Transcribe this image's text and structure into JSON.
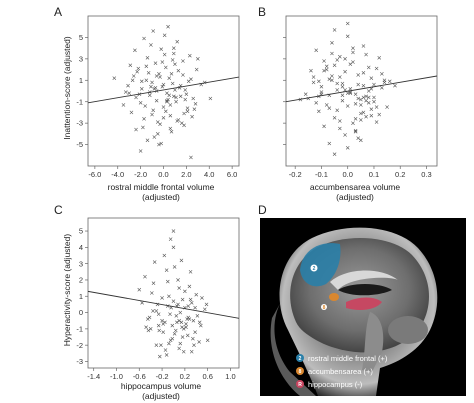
{
  "panels": {
    "a": {
      "letter": "A"
    },
    "b": {
      "letter": "B"
    },
    "c": {
      "letter": "C"
    },
    "d": {
      "letter": "D",
      "legend": [
        {
          "number": "2",
          "label": "rostral middle frontal (+)",
          "color": "#2a7fa8"
        },
        {
          "number": "8",
          "label": "accumbensarea (+)",
          "color": "#d9872f"
        },
        {
          "number": "R",
          "label": "hippocampus (-)",
          "color": "#c94560"
        }
      ],
      "region_labels": [
        "2",
        "8"
      ]
    }
  },
  "chart_data": [
    {
      "id": "a",
      "type": "scatter",
      "title": "",
      "ylabel": "Inattention-score (adjusted)",
      "xlabel_lines": [
        "rostral middle frontal volume",
        "(adjusted)"
      ],
      "xlim": [
        -6.6,
        6.6
      ],
      "ylim": [
        -7,
        7
      ],
      "xticks": [
        -6.0,
        -4.0,
        -2.0,
        0.0,
        2.0,
        4.0,
        6.0
      ],
      "xtick_labels": [
        "-6.0",
        "-4.0",
        "-2.0",
        "0.0",
        "2.0",
        "4.0",
        "6.0"
      ],
      "yticks": [
        -5,
        -3,
        -1,
        1,
        3,
        5
      ],
      "ytick_labels": [
        "-5",
        "-3",
        "-1",
        "1",
        "3",
        "5"
      ],
      "regression": {
        "x": [
          -6.6,
          6.6
        ],
        "y": [
          -1.1,
          1.3
        ]
      },
      "points_x": [
        -3.5,
        -3.1,
        -2.8,
        -2.6,
        -2.4,
        -2.2,
        -2.0,
        -1.9,
        -1.7,
        -1.5,
        -1.4,
        -1.2,
        -1.0,
        -0.9,
        -0.7,
        -0.6,
        -0.4,
        -0.3,
        -0.1,
        0.0,
        0.2,
        0.3,
        0.5,
        0.6,
        0.8,
        0.9,
        1.1,
        1.3,
        1.5,
        1.7,
        1.9,
        2.1,
        2.4,
        2.6,
        2.9,
        3.3,
        -2.5,
        -1.8,
        -1.1,
        -0.5,
        0.1,
        0.7,
        1.2,
        1.8,
        2.3,
        -2.9,
        -2.1,
        -1.3,
        -0.8,
        -0.2,
        0.4,
        1.0,
        1.6,
        2.2,
        2.8,
        -3.3,
        -1.6,
        -0.6,
        0.3,
        1.4,
        2.5,
        -2.3,
        -1.0,
        0.0,
        1.1,
        2.0,
        -1.9,
        -0.4,
        0.8,
        1.7,
        -0.9,
        0.2,
        1.3,
        -0.3,
        0.6,
        -1.4,
        0.9,
        -2.7,
        1.9,
        3.0,
        -0.7,
        0.5,
        0.0,
        -1.2,
        1.5,
        -0.1,
        2.7,
        -2.0,
        0.4,
        -3.0,
        3.6,
        -4.3,
        4.1,
        -0.5,
        0.7,
        -1.7,
        1.2,
        0.1,
        -0.8,
        2.1,
        -2.4,
        0.3,
        -0.2,
        1.0,
        -1.5,
        0.9,
        -0.6,
        1.8,
        -1.1,
        0.6,
        2.4
      ],
      "points_y": [
        -1.3,
        0.5,
        -2.0,
        1.4,
        -0.6,
        2.1,
        -1.1,
        0.2,
        -2.6,
        1.0,
        3.1,
        -0.4,
        0.8,
        -1.8,
        2.6,
        -0.9,
        1.6,
        -3.1,
        0.4,
        -1.5,
        2.2,
        -0.2,
        1.2,
        -2.3,
        0.7,
        3.5,
        -1.0,
        1.9,
        -0.5,
        2.8,
        0.1,
        -1.6,
        1.1,
        -0.7,
        2.0,
        0.6,
        3.8,
        -3.4,
        4.3,
        -2.9,
        5.2,
        -3.8,
        4.6,
        -2.1,
        3.3,
        2.4,
        -0.3,
        1.7,
        -4.3,
        3.9,
        -0.8,
        2.5,
        -3.0,
        0.9,
        -1.2,
        -0.1,
        -1.4,
        0.0,
        -0.9,
        0.3,
        -2.4,
        1.8,
        -2.2,
        0.6,
        -0.6,
        -0.3,
        0.9,
        -5.0,
        2.9,
        1.5,
        5.6,
        -1.9,
        -2.7,
        1.3,
        -3.5,
        -4.6,
        4.0,
        1.0,
        -0.8,
        3.0,
        0.3,
        -0.4,
        -2.5,
        -0.1,
        0.5,
        2.7,
        -1.7,
        -5.6,
        6.0,
        -0.2,
        0.8,
        1.2,
        -0.7,
        -4.0,
        1.6,
        4.9,
        -2.8,
        3.4,
        0.2,
        -1.9,
        -3.6,
        -1.0,
        -4.9,
        0.1,
        2.3,
        -0.5,
        1.4,
        -3.2,
        0.4,
        -1.3,
        -6.2
      ]
    },
    {
      "id": "b",
      "type": "scatter",
      "title": "",
      "ylabel": "",
      "xlabel_lines": [
        "accumbensarea volume",
        "(adjusted)"
      ],
      "xlim": [
        -0.235,
        0.34
      ],
      "ylim": [
        -7,
        7
      ],
      "xticks": [
        -0.2,
        -0.1,
        0.0,
        0.1,
        0.2,
        0.3
      ],
      "xtick_labels": [
        "-0.2",
        "-0.1",
        "0.0",
        "0.1",
        "0.2",
        "0.3"
      ],
      "yticks": [
        -5,
        -3,
        -1,
        1,
        3,
        5
      ],
      "ytick_labels": [
        "",
        "",
        "",
        "",
        "",
        ""
      ],
      "regression": {
        "x": [
          -0.235,
          0.34
        ],
        "y": [
          -1.0,
          1.4
        ]
      },
      "points_x": [
        -0.15,
        -0.13,
        -0.11,
        -0.1,
        -0.08,
        -0.07,
        -0.06,
        -0.05,
        -0.04,
        -0.03,
        -0.02,
        -0.01,
        0.0,
        0.01,
        0.02,
        0.03,
        0.04,
        0.05,
        0.06,
        0.07,
        0.08,
        0.09,
        0.1,
        0.11,
        0.13,
        0.15,
        -0.12,
        -0.09,
        -0.06,
        -0.03,
        0.0,
        0.03,
        0.06,
        0.09,
        0.12,
        -0.14,
        -0.1,
        -0.05,
        -0.01,
        0.02,
        0.05,
        0.08,
        0.11,
        0.14,
        -0.08,
        -0.04,
        0.01,
        0.04,
        0.07,
        -0.11,
        -0.07,
        -0.02,
        0.03,
        0.06,
        0.1,
        -0.05,
        0.0,
        0.05,
        -0.16,
        0.16,
        -0.09,
        0.09,
        -0.03,
        0.02,
        -0.06,
        0.07,
        0.12,
        -0.12,
        0.04,
        -0.01,
        0.08,
        -0.04,
        0.01,
        0.1,
        -0.07,
        0.05,
        -0.02,
        0.03,
        -0.1,
        0.06,
        -0.13,
        0.13,
        0.0,
        -0.05,
        0.02,
        0.09,
        -0.08,
        0.04,
        -0.03,
        0.06,
        0.18,
        -0.18,
        0.01,
        -0.02,
        0.07,
        -0.06,
        0.11,
        -0.09,
        0.03,
        0.0,
        -0.04,
        0.05,
        -0.01,
        0.08,
        -0.07,
        0.14,
        -0.11
      ],
      "points_y": [
        -0.7,
        1.3,
        -1.9,
        0.4,
        2.3,
        -0.4,
        1.0,
        -2.5,
        0.7,
        3.2,
        -0.9,
        1.8,
        -1.4,
        0.2,
        2.7,
        -0.3,
        1.5,
        -2.1,
        0.5,
        3.4,
        -1.1,
        1.2,
        -0.6,
        2.1,
        0.3,
        -1.5,
        3.8,
        -3.3,
        4.5,
        -2.8,
        5.1,
        -3.7,
        4.2,
        -2.3,
        3.1,
        1.9,
        -0.1,
        2.4,
        -4.1,
        3.6,
        -0.8,
        2.2,
        -2.9,
        0.8,
        -1.3,
        0.1,
        -0.2,
        0.6,
        -0.5,
        0.9,
        -1.6,
        -0.4,
        -2.6,
        1.7,
        -1.0,
        5.7,
        -5.3,
        -4.6,
        -0.3,
        0.9,
        2.8,
        -1.7,
        -3.5,
        4.0,
        1.4,
        -0.9,
        -2.2,
        -1.1,
        -0.7,
        3.0,
        0.0,
        -1.8,
        2.5,
        0.6,
        1.1,
        -2.7,
        0.4,
        -1.2,
        -0.3,
        -0.6,
        0.8,
        1.6,
        6.3,
        -5.9,
        -3.0,
        0.2,
        2.0,
        -4.4,
        1.3,
        -2.0,
        0.5,
        -0.8,
        -0.1,
        0.7,
        -2.4,
        3.5,
        -1.5,
        1.9,
        -3.8,
        -0.2,
        2.9,
        -1.3,
        0.1,
        -0.6,
        -4.9,
        1.0,
        -0.5
      ]
    },
    {
      "id": "c",
      "type": "scatter",
      "title": "",
      "ylabel": "Hyperactivity-score (adjusted)",
      "xlabel_lines": [
        "hippocampus volume",
        "(adjusted)"
      ],
      "xlim": [
        -1.5,
        1.15
      ],
      "ylim": [
        -3.4,
        5.8
      ],
      "xticks": [
        -1.4,
        -1.0,
        -0.6,
        -0.2,
        0.2,
        0.6,
        1.0
      ],
      "xtick_labels": [
        "-1.4",
        "-1.0",
        "-0.6",
        "-0.2",
        "0.2",
        "0.6",
        "1.0"
      ],
      "yticks": [
        -3,
        -2,
        -1,
        0,
        1,
        2,
        3,
        4,
        5
      ],
      "ytick_labels": [
        "-3",
        "-2",
        "-1",
        "0",
        "1",
        "2",
        "3",
        "4",
        "5"
      ],
      "regression": {
        "x": [
          -1.5,
          1.15
        ],
        "y": [
          1.3,
          -0.35
        ]
      },
      "points_x": [
        -0.55,
        -0.45,
        -0.38,
        -0.3,
        -0.25,
        -0.2,
        -0.15,
        -0.1,
        -0.05,
        0.0,
        0.05,
        0.1,
        0.15,
        0.2,
        0.25,
        0.3,
        0.35,
        0.4,
        0.48,
        0.55,
        -0.5,
        -0.35,
        -0.22,
        -0.12,
        -0.02,
        0.08,
        0.18,
        0.28,
        0.38,
        -0.42,
        -0.28,
        -0.18,
        -0.08,
        0.02,
        0.12,
        0.22,
        0.32,
        0.45,
        -0.6,
        -0.4,
        -0.26,
        -0.14,
        -0.04,
        0.06,
        0.16,
        0.26,
        0.36,
        0.5,
        -0.33,
        -0.16,
        0.0,
        0.14,
        0.3,
        -0.48,
        -0.24,
        -0.06,
        0.1,
        0.24,
        0.42,
        -0.36,
        -0.1,
        0.04,
        0.2,
        0.34,
        -0.2,
        0.08,
        0.28,
        -0.02,
        0.16,
        -0.3,
        0.12,
        0.38,
        -0.12,
        0.22,
        -0.44,
        0.02,
        0.46,
        -0.18,
        0.06,
        0.18,
        0.26,
        0.58,
        -0.05,
        0.1,
        -0.26,
        0.32,
        0.6,
        -0.08,
        0.0,
        0.14
      ],
      "points_y": [
        0.6,
        -0.4,
        1.2,
        0.1,
        -1.1,
        0.9,
        -0.6,
        0.4,
        -1.7,
        0.7,
        -0.2,
        1.5,
        -0.9,
        0.3,
        -1.4,
        0.8,
        -0.5,
        1.1,
        -0.8,
        0.2,
        2.2,
        1.8,
        -2.0,
        2.6,
        -1.6,
        2.0,
        -2.4,
        1.6,
        -1.2,
        -0.3,
        0.5,
        -0.7,
        1.0,
        -1.3,
        0.0,
        -0.9,
        0.6,
        -1.8,
        1.4,
        -1.0,
        -0.1,
        -2.3,
        0.3,
        -0.6,
        -1.5,
        0.4,
        -2.0,
        0.9,
        3.1,
        3.5,
        4.0,
        3.2,
        2.5,
        -0.9,
        -2.7,
        -0.1,
        -2.2,
        -0.4,
        -0.2,
        0.1,
        1.9,
        -1.1,
        1.3,
        -1.6,
        -0.5,
        0.5,
        -0.4,
        -0.8,
        0.8,
        -2.0,
        -1.9,
        0.3,
        -2.6,
        -0.7,
        -1.1,
        2.8,
        -0.6,
        -1.2,
        0.4,
        -1.0,
        -0.3,
        0.5,
        4.5,
        -0.5,
        -0.8,
        -2.4,
        -1.7,
        -1.9,
        5.0,
        -0.6
      ]
    }
  ]
}
